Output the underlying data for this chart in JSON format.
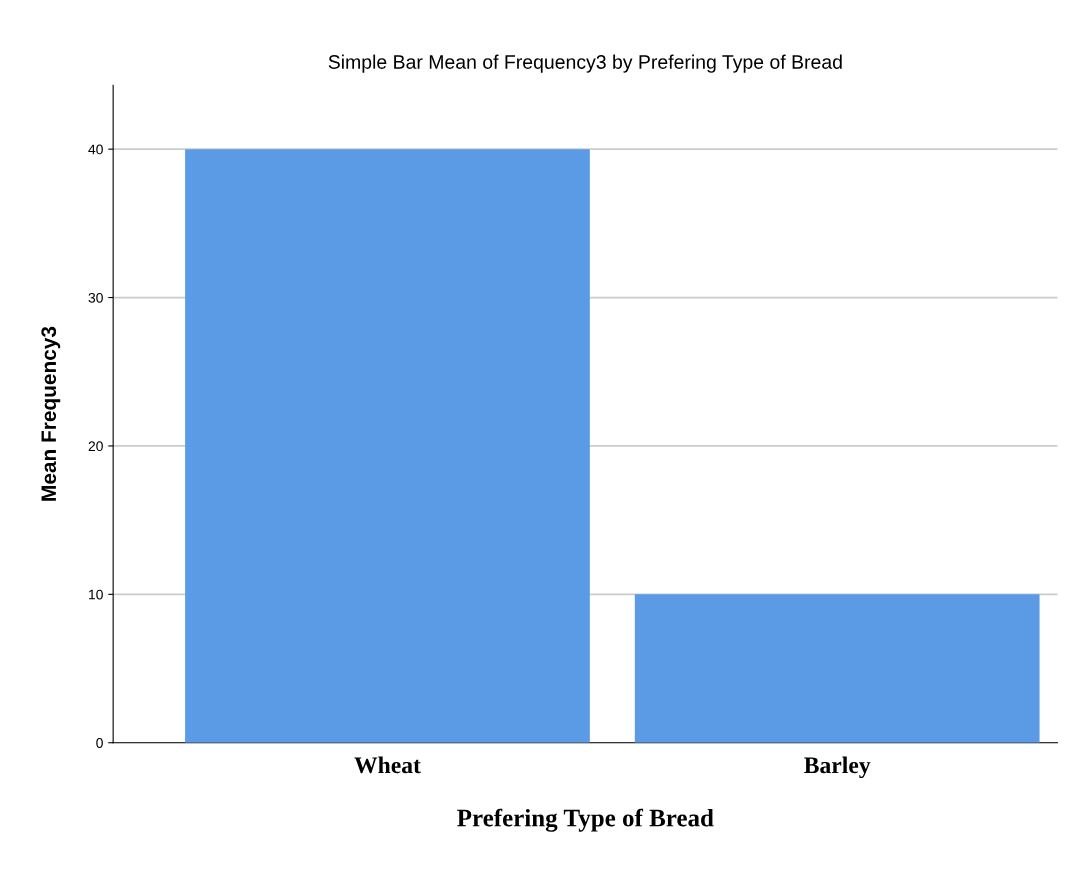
{
  "chart_data": {
    "type": "bar",
    "title": "Simple Bar Mean of Frequency3 by Prefering Type of Bread",
    "xlabel": "Prefering Type of Bread",
    "ylabel": "Mean Frequency3",
    "categories": [
      "Wheat",
      "Barley"
    ],
    "values": [
      40,
      10
    ],
    "color": "#5b9be6",
    "ylim": [
      0,
      44.3
    ],
    "yticks": [
      0,
      10,
      20,
      30,
      40
    ],
    "grid": "y"
  }
}
